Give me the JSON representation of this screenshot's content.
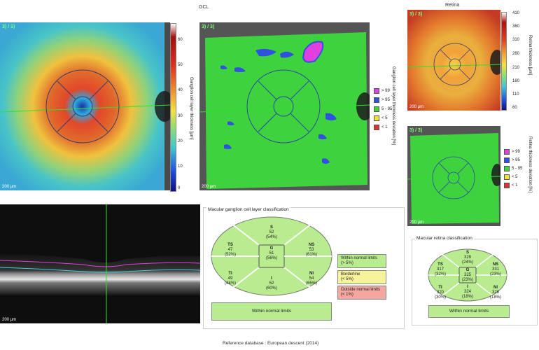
{
  "gcl": {
    "title": "GCL",
    "thickness_map": {
      "tag": "3) / 3)",
      "scale": "200 μm",
      "colorbar_ticks": [
        "60",
        "50",
        "40",
        "30",
        "20",
        "10",
        "0"
      ],
      "colorbar_label": "Ganglion cell layer thickness [μm]"
    },
    "deviation_map": {
      "tag": "3) / 3)",
      "scale": "200 μm",
      "deviation_label": "Ganglion cell layer thickness deviation [%]",
      "legend": [
        {
          "label": "> 99",
          "color": "#e040e0"
        },
        {
          "label": "> 95",
          "color": "#3050e0"
        },
        {
          "label": "5 - 95",
          "color": "#3fd23f"
        },
        {
          "label": "< 5",
          "color": "#f3e23a"
        },
        {
          "label": "< 1",
          "color": "#e03030"
        }
      ]
    }
  },
  "retina": {
    "title": "Retina",
    "thickness_map": {
      "tag": "3) / 3)",
      "scale": "200 μm",
      "colorbar_ticks": [
        "410",
        "360",
        "310",
        "260",
        "210",
        "160",
        "110",
        "60"
      ],
      "colorbar_label": "Retina thickness [μm]"
    },
    "deviation_map": {
      "tag": "3) / 3)",
      "scale": "200 μm",
      "deviation_label": "Retina thickness deviation [%]",
      "legend": [
        {
          "label": "> 99",
          "color": "#e040e0"
        },
        {
          "label": "> 95",
          "color": "#3050e0"
        },
        {
          "label": "5 - 95",
          "color": "#3fd23f"
        },
        {
          "label": "< 5",
          "color": "#f3e23a"
        },
        {
          "label": "< 1",
          "color": "#e03030"
        }
      ]
    }
  },
  "oct": {
    "scale": "200 μm"
  },
  "gcl_classification": {
    "title": "Macular ganglion cell layer classification",
    "sectors": {
      "S": {
        "name": "S",
        "value": "52",
        "pct": "(54%)"
      },
      "TS": {
        "name": "TS",
        "value": "47",
        "pct": "(52%)"
      },
      "NS": {
        "name": "NS",
        "value": "53",
        "pct": "(61%)"
      },
      "G": {
        "name": "G",
        "value": "51",
        "pct": "(56%)"
      },
      "TI": {
        "name": "TI",
        "value": "49",
        "pct": "(44%)"
      },
      "NI": {
        "name": "NI",
        "value": "54",
        "pct": "(65%)"
      },
      "I": {
        "name": "I",
        "value": "52",
        "pct": "(60%)"
      }
    },
    "status_legend": {
      "normal": {
        "line1": "Within normal limits",
        "line2": "(> 5%)"
      },
      "borderline": {
        "line1": "Borderline",
        "line2": "(< 5%)"
      },
      "outside": {
        "line1": "Outside normal limits",
        "line2": "(< 1%)"
      }
    },
    "result": "Within normal limits"
  },
  "retina_classification": {
    "title": "Macular retina classification",
    "sectors": {
      "S": {
        "name": "S",
        "value": "329",
        "pct": "(24%)"
      },
      "TS": {
        "name": "TS",
        "value": "317",
        "pct": "(32%)"
      },
      "NS": {
        "name": "NS",
        "value": "331",
        "pct": "(23%)"
      },
      "G": {
        "name": "G",
        "value": "325",
        "pct": "(23%)"
      },
      "TI": {
        "name": "TI",
        "value": "320",
        "pct": "(30%)"
      },
      "NI": {
        "name": "NI",
        "value": "328",
        "pct": "(18%)"
      },
      "I": {
        "name": "I",
        "value": "324",
        "pct": "(18%)"
      }
    },
    "result": "Within normal limits"
  },
  "footer": "Reference database : European descent (2014)",
  "colors": {
    "normal": "#b8ec8f",
    "borderline": "#f6f39a",
    "outside": "#f4a6a0",
    "fovea_green": "#3fd23f"
  }
}
